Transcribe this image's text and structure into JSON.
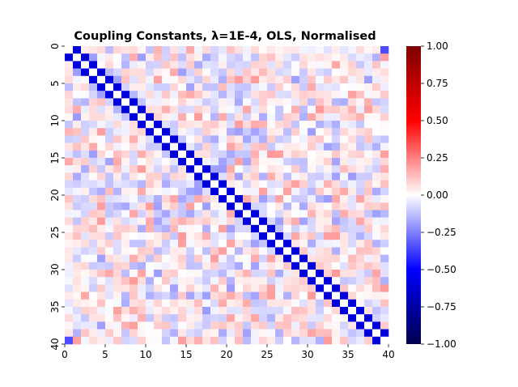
{
  "chart_data": {
    "type": "heatmap",
    "title": "Coupling Constants, λ=1E-4, OLS, Normalised",
    "xlabel": "",
    "ylabel": "",
    "n_rows": 40,
    "n_cols": 40,
    "x_ticks": [
      0,
      5,
      10,
      15,
      20,
      25,
      30,
      35,
      40
    ],
    "y_ticks": [
      0,
      5,
      10,
      15,
      20,
      25,
      30,
      35,
      40
    ],
    "x_tick_labels": [
      "0",
      "5",
      "10",
      "15",
      "20",
      "25",
      "30",
      "35",
      "40"
    ],
    "y_tick_labels": [
      "0",
      "5",
      "10",
      "15",
      "20",
      "25",
      "30",
      "35",
      "40"
    ],
    "colorbar": {
      "vmin": -1.0,
      "vmax": 1.0,
      "colormap": "seismic",
      "ticks": [
        -1.0,
        -0.75,
        -0.5,
        -0.25,
        0.0,
        0.25,
        0.5,
        0.75,
        1.0
      ],
      "tick_labels": [
        "−1.00",
        "−0.75",
        "−0.50",
        "−0.25",
        "0.00",
        "0.25",
        "0.50",
        "0.75",
        "1.00"
      ]
    },
    "structure": {
      "diagonal": 0.0,
      "off_diagonal_neighbors": -0.6,
      "wraparound_corners": -0.35,
      "background_noise_range": [
        -0.2,
        0.2
      ]
    },
    "grid": false,
    "colors": {
      "negative_extreme": "#00004c",
      "negative": "#0000ff",
      "zero": "#ffffff",
      "positive": "#ff0000",
      "positive_extreme": "#7f0000"
    }
  }
}
